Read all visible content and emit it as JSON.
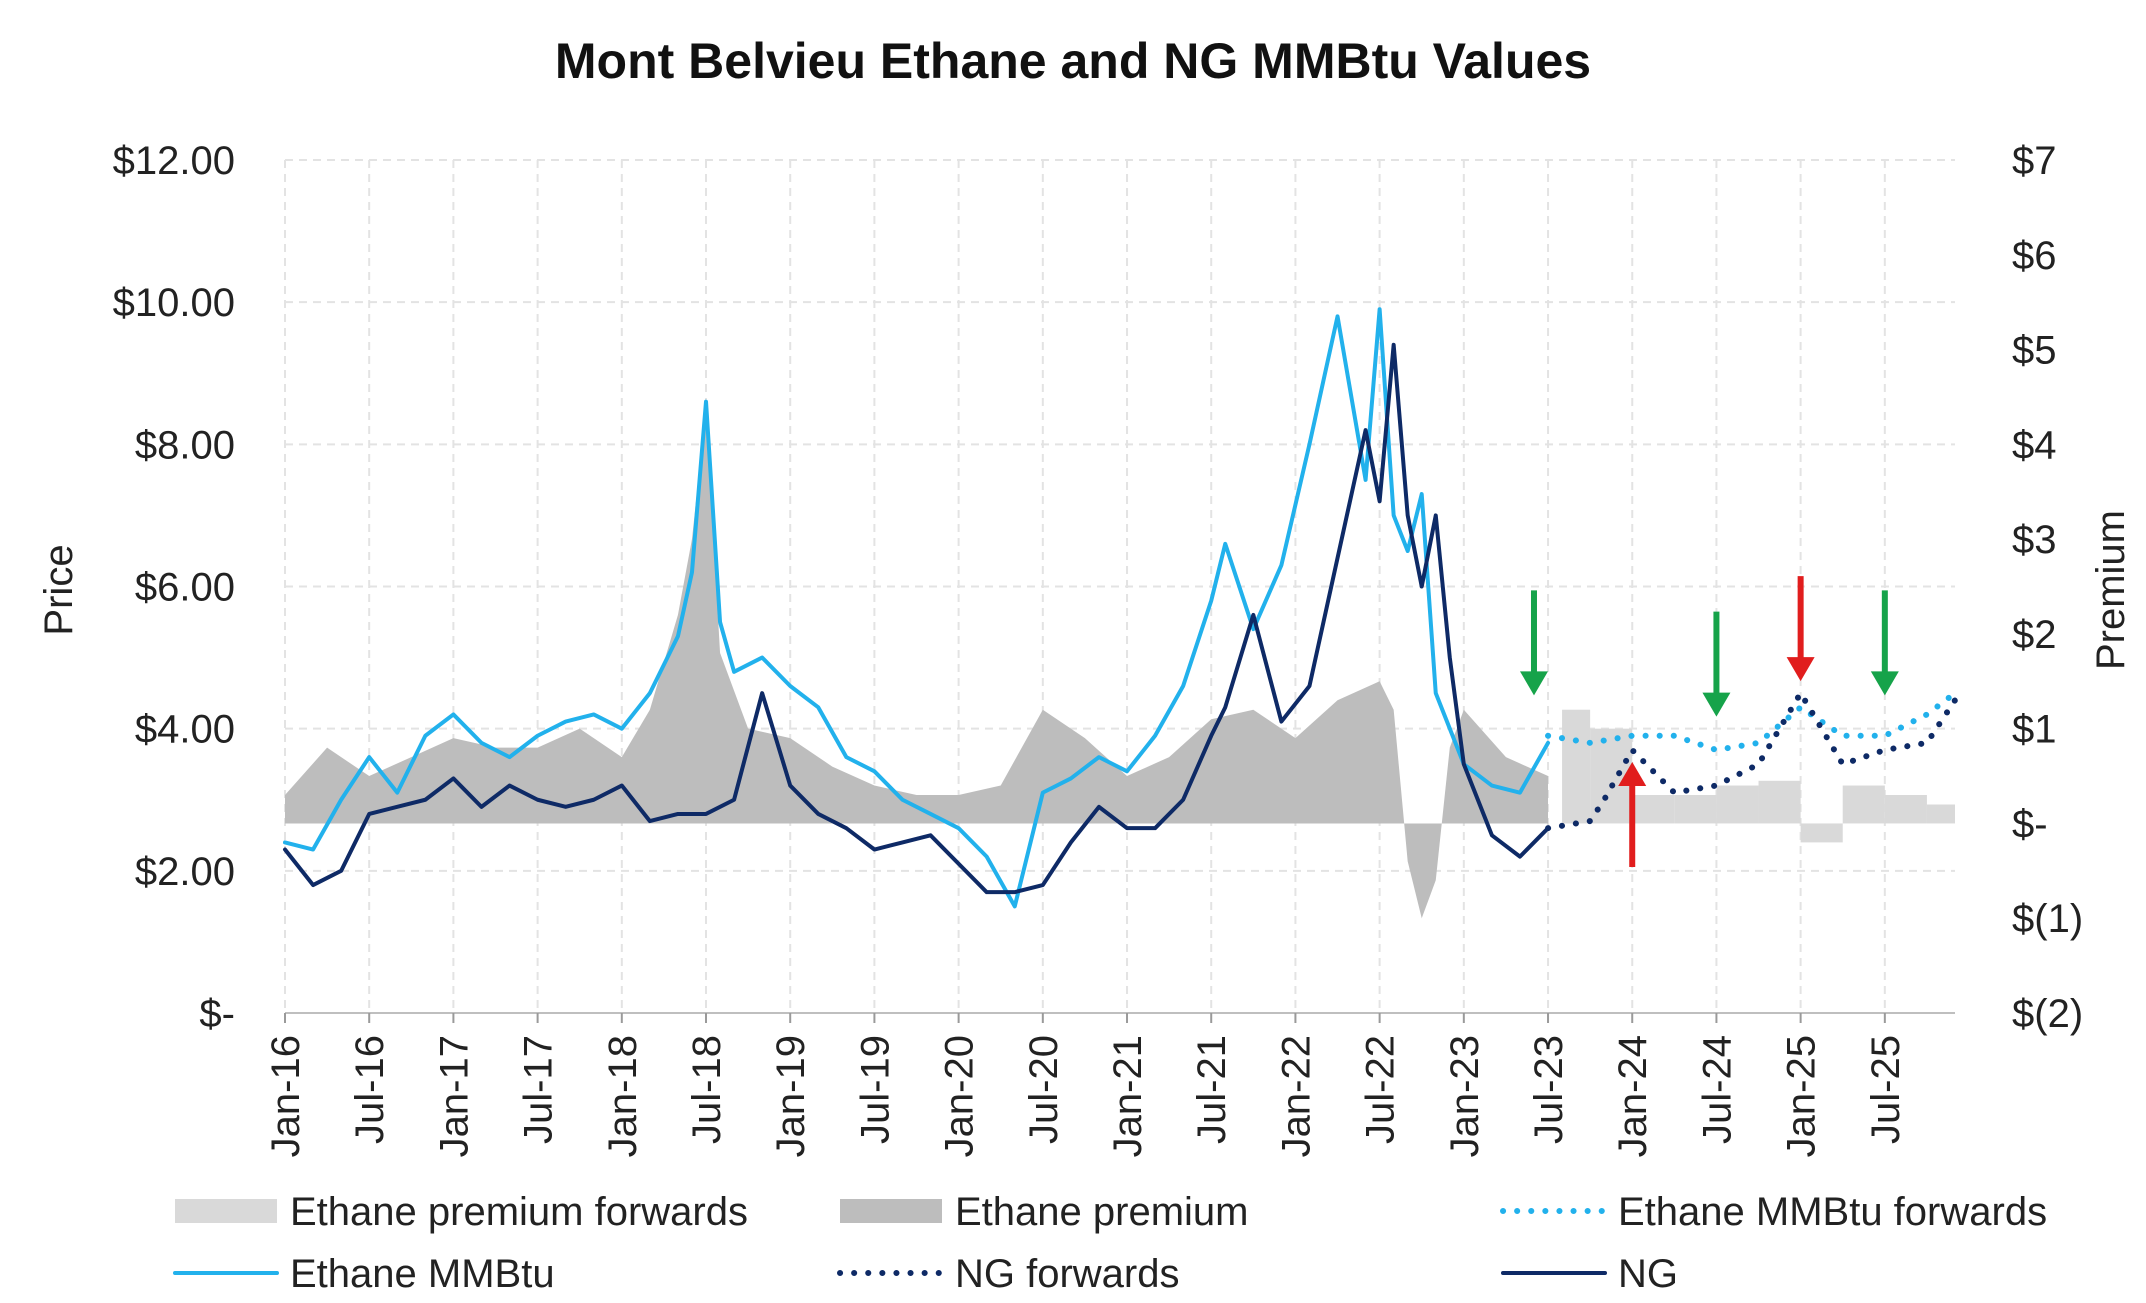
{
  "chart_data": {
    "type": "line",
    "title": "Mont Belvieu Ethane and NG MMBtu Values",
    "ylabel": "Price",
    "y2label": "Premium",
    "ylim": [
      0,
      12
    ],
    "y2lim": [
      -2,
      7
    ],
    "y_ticks": [
      0,
      2,
      4,
      6,
      8,
      10,
      12
    ],
    "y_tick_labels": [
      "$-",
      "$2.00",
      "$4.00",
      "$6.00",
      "$8.00",
      "$10.00",
      "$12.00"
    ],
    "y2_ticks": [
      -2,
      -1,
      0,
      1,
      2,
      3,
      4,
      5,
      6,
      7
    ],
    "y2_tick_labels": [
      "$(2)",
      "$(1)",
      "$-",
      "$1",
      "$2",
      "$3",
      "$4",
      "$5",
      "$6",
      "$7"
    ],
    "x_ticks": [
      "Jan-16",
      "Jul-16",
      "Jan-17",
      "Jul-17",
      "Jan-18",
      "Jul-18",
      "Jan-19",
      "Jul-19",
      "Jan-20",
      "Jul-20",
      "Jan-21",
      "Jul-21",
      "Jan-22",
      "Jul-22",
      "Jan-23",
      "Jul-23",
      "Jan-24",
      "Jul-24",
      "Jan-25",
      "Jul-25"
    ],
    "x_range": [
      "Jan-16",
      "Dec-25"
    ],
    "grid": true,
    "legend_position": "bottom",
    "series": [
      {
        "name": "Ethane premium",
        "kind": "area",
        "axis": "right",
        "color": "#BDBDBD",
        "x": [
          "Jan-16",
          "Apr-16",
          "Jul-16",
          "Oct-16",
          "Jan-17",
          "Apr-17",
          "Jul-17",
          "Oct-17",
          "Jan-18",
          "Mar-18",
          "May-18",
          "Jun-18",
          "Jul-18",
          "Aug-18",
          "Oct-18",
          "Jan-19",
          "Apr-19",
          "Jul-19",
          "Oct-19",
          "Jan-20",
          "Apr-20",
          "Jul-20",
          "Oct-20",
          "Jan-21",
          "Apr-21",
          "Jul-21",
          "Oct-21",
          "Jan-22",
          "Apr-22",
          "Jul-22",
          "Aug-22",
          "Sep-22",
          "Oct-22",
          "Nov-22",
          "Dec-22",
          "Jan-23",
          "Apr-23",
          "Jul-23"
        ],
        "values": [
          0.3,
          0.8,
          0.5,
          0.7,
          0.9,
          0.8,
          0.8,
          1.0,
          0.7,
          1.2,
          2.2,
          3.0,
          4.4,
          1.8,
          1.0,
          0.9,
          0.6,
          0.4,
          0.3,
          0.3,
          0.4,
          1.2,
          0.9,
          0.5,
          0.7,
          1.1,
          1.2,
          0.9,
          1.3,
          1.5,
          1.2,
          -0.4,
          -1.0,
          -0.6,
          0.8,
          1.2,
          0.7,
          0.5
        ]
      },
      {
        "name": "Ethane premium forwards",
        "kind": "step-area",
        "axis": "right",
        "color": "#D9D9D9",
        "x": [
          "Aug-23",
          "Oct-23",
          "Jan-24",
          "Apr-24",
          "Jul-24",
          "Oct-24",
          "Jan-25",
          "Apr-25",
          "Jul-25",
          "Oct-25",
          "Dec-25"
        ],
        "values": [
          1.2,
          1.0,
          0.3,
          0.3,
          0.4,
          0.45,
          -0.2,
          0.4,
          0.3,
          0.2,
          0.0
        ]
      },
      {
        "name": "Ethane MMBtu",
        "kind": "line",
        "axis": "left",
        "color": "#22B1EC",
        "x": [
          "Jan-16",
          "Mar-16",
          "May-16",
          "Jul-16",
          "Sep-16",
          "Nov-16",
          "Jan-17",
          "Mar-17",
          "May-17",
          "Jul-17",
          "Sep-17",
          "Nov-17",
          "Jan-18",
          "Mar-18",
          "May-18",
          "Jun-18",
          "Jul-18",
          "Aug-18",
          "Sep-18",
          "Nov-18",
          "Jan-19",
          "Mar-19",
          "May-19",
          "Jul-19",
          "Sep-19",
          "Nov-19",
          "Jan-20",
          "Mar-20",
          "May-20",
          "Jul-20",
          "Sep-20",
          "Nov-20",
          "Jan-21",
          "Mar-21",
          "May-21",
          "Jul-21",
          "Aug-21",
          "Oct-21",
          "Dec-21",
          "Feb-22",
          "Apr-22",
          "Jun-22",
          "Jul-22",
          "Aug-22",
          "Sep-22",
          "Oct-22",
          "Nov-22",
          "Dec-22",
          "Jan-23",
          "Mar-23",
          "May-23",
          "Jul-23"
        ],
        "values": [
          2.4,
          2.3,
          3.0,
          3.6,
          3.1,
          3.9,
          4.2,
          3.8,
          3.6,
          3.9,
          4.1,
          4.2,
          4.0,
          4.5,
          5.3,
          6.2,
          8.6,
          5.5,
          4.8,
          5.0,
          4.6,
          4.3,
          3.6,
          3.4,
          3.0,
          2.8,
          2.6,
          2.2,
          1.5,
          3.1,
          3.3,
          3.6,
          3.4,
          3.9,
          4.6,
          5.8,
          6.6,
          5.4,
          6.3,
          8.0,
          9.8,
          7.5,
          9.9,
          7.0,
          6.5,
          7.3,
          4.5,
          4.0,
          3.5,
          3.2,
          3.1,
          3.8
        ]
      },
      {
        "name": "NG",
        "kind": "line",
        "axis": "left",
        "color": "#0E2A66",
        "x": [
          "Jan-16",
          "Mar-16",
          "May-16",
          "Jul-16",
          "Sep-16",
          "Nov-16",
          "Jan-17",
          "Mar-17",
          "May-17",
          "Jul-17",
          "Sep-17",
          "Nov-17",
          "Jan-18",
          "Mar-18",
          "May-18",
          "Jul-18",
          "Sep-18",
          "Nov-18",
          "Jan-19",
          "Mar-19",
          "May-19",
          "Jul-19",
          "Sep-19",
          "Nov-19",
          "Jan-20",
          "Mar-20",
          "May-20",
          "Jul-20",
          "Sep-20",
          "Nov-20",
          "Jan-21",
          "Mar-21",
          "May-21",
          "Jul-21",
          "Aug-21",
          "Oct-21",
          "Dec-21",
          "Feb-22",
          "Apr-22",
          "Jun-22",
          "Jul-22",
          "Aug-22",
          "Sep-22",
          "Oct-22",
          "Nov-22",
          "Dec-22",
          "Jan-23",
          "Mar-23",
          "May-23",
          "Jul-23"
        ],
        "values": [
          2.3,
          1.8,
          2.0,
          2.8,
          2.9,
          3.0,
          3.3,
          2.9,
          3.2,
          3.0,
          2.9,
          3.0,
          3.2,
          2.7,
          2.8,
          2.8,
          3.0,
          4.5,
          3.2,
          2.8,
          2.6,
          2.3,
          2.4,
          2.5,
          2.1,
          1.7,
          1.7,
          1.8,
          2.4,
          2.9,
          2.6,
          2.6,
          3.0,
          3.9,
          4.3,
          5.6,
          4.1,
          4.6,
          6.4,
          8.2,
          7.2,
          9.4,
          7.0,
          6.0,
          7.0,
          5.0,
          3.5,
          2.5,
          2.2,
          2.6
        ]
      },
      {
        "name": "Ethane MMBtu forwards",
        "kind": "dotted-line",
        "axis": "left",
        "color": "#22B1EC",
        "x": [
          "Jul-23",
          "Oct-23",
          "Jan-24",
          "Apr-24",
          "Jul-24",
          "Oct-24",
          "Jan-25",
          "Apr-25",
          "Jul-25",
          "Oct-25",
          "Dec-25"
        ],
        "values": [
          3.9,
          3.8,
          3.9,
          3.9,
          3.7,
          3.8,
          4.3,
          3.9,
          3.9,
          4.2,
          4.5
        ]
      },
      {
        "name": "NG forwards",
        "kind": "dotted-line",
        "axis": "left",
        "color": "#0E2A66",
        "x": [
          "Jul-23",
          "Oct-23",
          "Nov-23",
          "Jan-24",
          "Apr-24",
          "Jul-24",
          "Oct-24",
          "Jan-25",
          "Apr-25",
          "Jul-25",
          "Oct-25",
          "Dec-25"
        ],
        "values": [
          2.6,
          2.7,
          3.0,
          3.7,
          3.1,
          3.2,
          3.5,
          4.5,
          3.5,
          3.7,
          3.8,
          4.4
        ]
      }
    ],
    "annotations": [
      {
        "type": "arrow",
        "direction": "down",
        "color": "#16A34A",
        "x": "Jun-23",
        "y": 4.3
      },
      {
        "type": "arrow",
        "direction": "up",
        "color": "#E11D1D",
        "x": "Jan-24",
        "y": 3.7
      },
      {
        "type": "arrow",
        "direction": "down",
        "color": "#16A34A",
        "x": "Jul-24",
        "y": 4.0
      },
      {
        "type": "arrow",
        "direction": "down",
        "color": "#E11D1D",
        "x": "Jan-25",
        "y": 4.5
      },
      {
        "type": "arrow",
        "direction": "down",
        "color": "#16A34A",
        "x": "Jul-25",
        "y": 4.3
      }
    ]
  }
}
